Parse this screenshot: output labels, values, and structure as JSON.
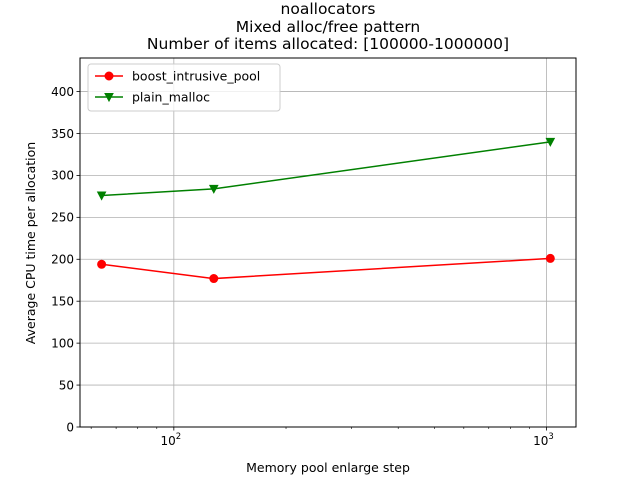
{
  "chart_data": {
    "type": "line",
    "title_lines": [
      "noallocators",
      "Mixed alloc/free pattern",
      "Number of items allocated: [100000-1000000]"
    ],
    "xlabel": "Memory pool enlarge step",
    "ylabel": "Average CPU time per allocation",
    "xscale": "log",
    "xlim": [
      56,
      1200
    ],
    "ylim": [
      0,
      440
    ],
    "x_major_ticks": [
      100,
      1000
    ],
    "x_major_tick_labels": [
      {
        "base": "10",
        "exp": "2"
      },
      {
        "base": "10",
        "exp": "3"
      }
    ],
    "x_minor_ticks": [
      60,
      70,
      80,
      90,
      200,
      300,
      400,
      500,
      600,
      700,
      800,
      900
    ],
    "y_ticks": [
      0,
      50,
      100,
      150,
      200,
      250,
      300,
      350,
      400
    ],
    "y_tick_labels": [
      "0",
      "50",
      "100",
      "150",
      "200",
      "250",
      "300",
      "350",
      "400"
    ],
    "grid": true,
    "legend_position": "upper-left",
    "series": [
      {
        "name": "boost_intrusive_pool",
        "color": "#ff0000",
        "marker": "circle",
        "x": [
          64,
          128,
          1024
        ],
        "y": [
          194,
          177,
          201
        ]
      },
      {
        "name": "plain_malloc",
        "color": "#008000",
        "marker": "triangle-down",
        "x": [
          64,
          128,
          1024
        ],
        "y": [
          276,
          284,
          340
        ]
      }
    ]
  }
}
